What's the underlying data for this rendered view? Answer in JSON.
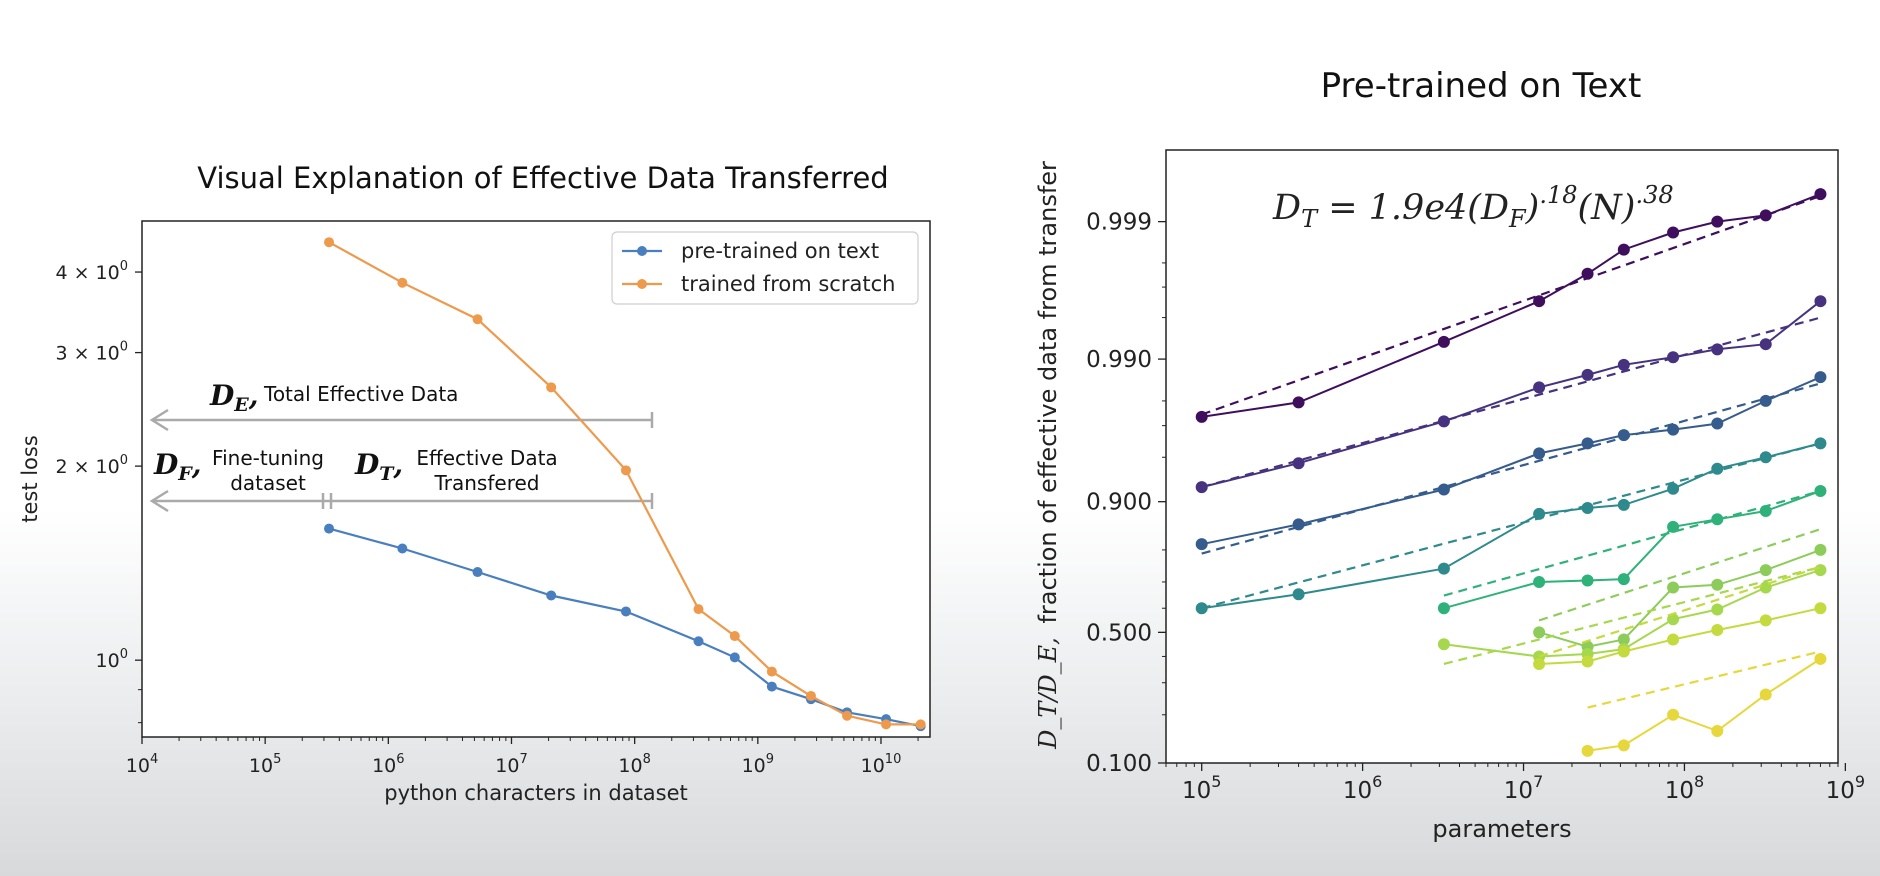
{
  "chart_data": [
    {
      "type": "line",
      "title": "Visual Explanation of Effective Data Transferred",
      "xlabel": "python characters in dataset",
      "ylabel": "test loss",
      "xscale": "log",
      "yscale": "log",
      "xlim": [
        10000,
        25000000000
      ],
      "ylim": [
        0.76,
        4.8
      ],
      "x_ticks": [
        {
          "value": 10000,
          "base": "10",
          "exp": "4"
        },
        {
          "value": 100000,
          "base": "10",
          "exp": "5"
        },
        {
          "value": 1000000,
          "base": "10",
          "exp": "6"
        },
        {
          "value": 10000000,
          "base": "10",
          "exp": "7"
        },
        {
          "value": 100000000,
          "base": "10",
          "exp": "8"
        },
        {
          "value": 1000000000,
          "base": "10",
          "exp": "9"
        },
        {
          "value": 10000000000,
          "base": "10",
          "exp": "10"
        }
      ],
      "y_ticks": [
        {
          "value": 4,
          "label": "4 × 10",
          "exp": "0"
        },
        {
          "value": 3,
          "label": "3 × 10",
          "exp": "0"
        },
        {
          "value": 2,
          "label": "2 × 10",
          "exp": "0"
        },
        {
          "value": 1,
          "label": "10",
          "exp": "0"
        }
      ],
      "legend": {
        "position": "top-right",
        "entries": [
          "pre-trained on text",
          "trained from scratch"
        ]
      },
      "series": [
        {
          "name": "pre-trained on text",
          "color": "#4a7fbf",
          "x": [
            330000,
            1300000,
            5300000,
            21000000,
            85000000,
            330000000,
            650000000,
            1300000000,
            2700000000,
            5300000000,
            11000000000,
            21000000000
          ],
          "y": [
            1.6,
            1.49,
            1.37,
            1.26,
            1.19,
            1.07,
            1.01,
            0.91,
            0.87,
            0.83,
            0.81,
            0.79
          ]
        },
        {
          "name": "trained from scratch",
          "color": "#ee9a4d",
          "x": [
            330000,
            1300000,
            5300000,
            21000000,
            85000000,
            330000000,
            650000000,
            1300000000,
            2700000000,
            5300000000,
            11000000000,
            21000000000
          ],
          "y": [
            4.45,
            3.85,
            3.38,
            2.65,
            1.97,
            1.2,
            1.09,
            0.96,
            0.88,
            0.82,
            0.795,
            0.795
          ]
        }
      ],
      "annotations": {
        "de_symbol": "D",
        "de_sub": "E",
        "de_text": "Total Effective Data",
        "df_symbol": "D",
        "df_sub": "F",
        "df_text_1": "Fine-tuning",
        "df_text_2": "dataset",
        "dt_symbol": "D",
        "dt_sub": "T",
        "dt_text_1": "Effective Data",
        "dt_text_2": "Transfered"
      }
    },
    {
      "type": "line",
      "title": "Pre-trained on Text",
      "xlabel": "parameters",
      "ylabel": "fraction of effective data from transfer",
      "ylabel_math": "D_T/D_E,",
      "xscale": "log",
      "yscale": "logit",
      "xlim": [
        60000,
        900000000
      ],
      "ylim": [
        0.1,
        0.9997
      ],
      "grid": false,
      "x_ticks": [
        {
          "value": 100000,
          "base": "10",
          "exp": "5"
        },
        {
          "value": 1000000,
          "base": "10",
          "exp": "6"
        },
        {
          "value": 10000000,
          "base": "10",
          "exp": "7"
        },
        {
          "value": 100000000,
          "base": "10",
          "exp": "8"
        },
        {
          "value": 1000000000,
          "base": "10",
          "exp": "9"
        }
      ],
      "y_ticks": [
        {
          "value": 0.999,
          "label": "0.999"
        },
        {
          "value": 0.99,
          "label": "0.990"
        },
        {
          "value": 0.9,
          "label": "0.900"
        },
        {
          "value": 0.5,
          "label": "0.500"
        },
        {
          "value": 0.1,
          "label": "0.100"
        }
      ],
      "equation": {
        "lhs": "D",
        "lhs_sub": "T",
        "mid": " = 1.9e4(D",
        "mid_sub": "F",
        "exp1": ".18",
        "rest": "(N)",
        "exp2": ".38"
      },
      "series": [
        {
          "color": "#3f0f5e",
          "x": [
            100000,
            400000,
            3200000,
            12500000,
            25000000,
            42000000,
            85000000,
            160000000,
            320000000,
            700000000
          ],
          "y": [
            0.974,
            0.9795,
            0.9925,
            0.9962,
            0.9976,
            0.9984,
            0.9988,
            0.999,
            0.9991,
            0.99937
          ],
          "fit": [
            0.975,
            0.99935
          ]
        },
        {
          "color": "#46327e",
          "x": [
            100000,
            400000,
            3200000,
            12500000,
            25000000,
            42000000,
            85000000,
            160000000,
            320000000,
            700000000
          ],
          "y": [
            0.92,
            0.945,
            0.972,
            0.984,
            0.987,
            0.989,
            0.9903,
            0.9915,
            0.9922,
            0.9962
          ],
          "fit": [
            0.92,
            0.995
          ]
        },
        {
          "color": "#365c8d",
          "x": [
            100000,
            400000,
            3200000,
            12500000,
            25000000,
            42000000,
            85000000,
            160000000,
            320000000,
            700000000
          ],
          "y": [
            0.815,
            0.86,
            0.917,
            0.953,
            0.96,
            0.965,
            0.968,
            0.971,
            0.98,
            0.9865
          ],
          "fit": [
            0.79,
            0.985
          ]
        },
        {
          "color": "#2e8a8c",
          "x": [
            100000,
            400000,
            3200000,
            12500000,
            25000000,
            42000000,
            85000000,
            160000000,
            320000000,
            700000000
          ],
          "y": [
            0.6,
            0.655,
            0.745,
            0.88,
            0.89,
            0.895,
            0.918,
            0.94,
            0.95,
            0.96
          ],
          "fit": [
            0.6,
            0.96
          ]
        },
        {
          "color": "#2fb27a",
          "x": [
            3200000,
            12500000,
            25000000,
            42000000,
            85000000,
            160000000,
            320000000,
            700000000
          ],
          "y": [
            0.6,
            0.7,
            0.705,
            0.71,
            0.855,
            0.87,
            0.885,
            0.915
          ],
          "fit": [
            0.65,
            0.915
          ]
        },
        {
          "color": "#8dcc5b",
          "x": [
            12500000,
            25000000,
            42000000,
            85000000,
            160000000,
            320000000,
            700000000
          ],
          "y": [
            0.5,
            0.44,
            0.47,
            0.68,
            0.69,
            0.74,
            0.8
          ],
          "fit": [
            0.55,
            0.85
          ]
        },
        {
          "color": "#a6d84e",
          "x": [
            3200000,
            12500000,
            25000000,
            42000000,
            85000000,
            160000000,
            320000000,
            700000000
          ],
          "y": [
            0.45,
            0.4,
            0.41,
            0.43,
            0.555,
            0.595,
            0.68,
            0.74
          ],
          "fit": [
            0.37,
            0.75
          ]
        },
        {
          "color": "#c4da3f",
          "x": [
            12500000,
            25000000,
            42000000,
            85000000,
            160000000,
            320000000,
            700000000
          ],
          "y": [
            0.37,
            0.38,
            0.42,
            0.47,
            0.51,
            0.55,
            0.6
          ],
          "fit": [
            0.4,
            0.75
          ]
        },
        {
          "color": "#e6d83c",
          "x": [
            25000000,
            42000000,
            85000000,
            160000000,
            320000000,
            700000000
          ],
          "y": [
            0.12,
            0.13,
            0.2,
            0.16,
            0.26,
            0.39
          ],
          "fit": [
            0.22,
            0.42
          ]
        }
      ]
    }
  ]
}
